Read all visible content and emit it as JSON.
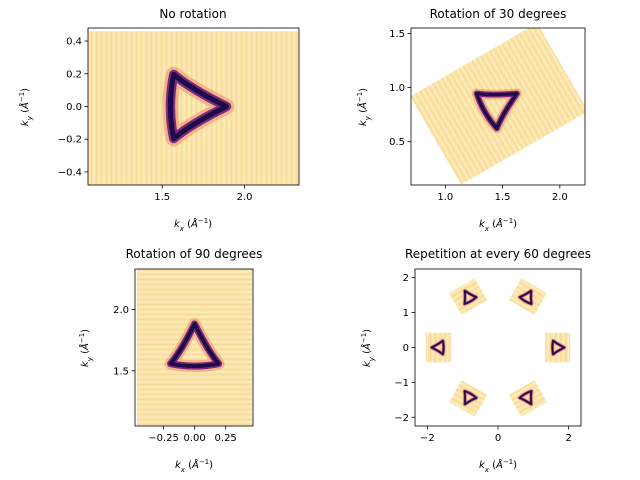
{
  "chart_data": [
    {
      "type": "heatmap",
      "title": "No rotation",
      "xlabel": "k_x (Å^-1)",
      "ylabel": "k_y (Å^-1)",
      "xlim": [
        1.05,
        2.33
      ],
      "ylim": [
        -0.48,
        0.48
      ],
      "xticks": [
        1.5,
        2.0
      ],
      "xtick_labels": [
        "1.5",
        "2.0"
      ],
      "yticks": [
        -0.4,
        -0.2,
        0.0,
        0.2,
        0.4
      ],
      "ytick_labels": [
        "−0.4",
        "−0.2",
        "0.0",
        "0.2",
        "0.4"
      ],
      "map_extent": {
        "x": [
          1.05,
          2.33
        ],
        "y": [
          -0.48,
          0.46
        ]
      },
      "rotation_deg": 0,
      "copies": [
        {
          "cx": 1.7,
          "cy": 0.0
        }
      ],
      "feature": {
        "shape": "triangle",
        "radius": 0.2
      }
    },
    {
      "type": "heatmap",
      "title": "Rotation of 30 degrees",
      "xlabel": "k_x (Å^-1)",
      "ylabel": "k_y (Å^-1)",
      "xlim": [
        0.7,
        2.22
      ],
      "ylim": [
        0.1,
        1.55
      ],
      "xticks": [
        1.0,
        1.5,
        2.0
      ],
      "xtick_labels": [
        "1.0",
        "1.5",
        "2.0"
      ],
      "yticks": [
        0.5,
        1.0,
        1.5
      ],
      "ytick_labels": [
        "0.5",
        "1.0",
        "1.5"
      ],
      "map_size": {
        "w": 1.28,
        "h": 0.94
      },
      "rotation_deg": 30,
      "copies": [
        {
          "cx": 1.47,
          "cy": 0.85
        }
      ],
      "feature": {
        "shape": "triangle",
        "radius": 0.19
      }
    },
    {
      "type": "heatmap",
      "title": "Rotation of 90 degrees",
      "xlabel": "k_x (Å^-1)",
      "ylabel": "k_y (Å^-1)",
      "xlim": [
        -0.48,
        0.47
      ],
      "ylim": [
        1.05,
        2.33
      ],
      "xticks": [
        -0.25,
        0.0,
        0.25
      ],
      "xtick_labels": [
        "−0.25",
        "0.00",
        "0.25"
      ],
      "yticks": [
        1.5,
        2.0
      ],
      "ytick_labels": [
        "1.5",
        "2.0"
      ],
      "map_size": {
        "w": 1.28,
        "h": 0.94
      },
      "rotation_deg": 90,
      "copies": [
        {
          "cx": 0.0,
          "cy": 1.69
        }
      ],
      "feature": {
        "shape": "triangle",
        "radius": 0.2
      }
    },
    {
      "type": "heatmap",
      "title": "Repetition at every 60 degrees",
      "xlabel": "k_x (Å^-1)",
      "ylabel": "k_y (Å^-1)",
      "xlim": [
        -2.35,
        2.35
      ],
      "ylim": [
        -2.25,
        2.25
      ],
      "xticks": [
        -2,
        0,
        2
      ],
      "xtick_labels": [
        "−2",
        "0",
        "2"
      ],
      "yticks": [
        -2,
        -1,
        0,
        1,
        2
      ],
      "ytick_labels": [
        "−2",
        "−1",
        "0",
        "1",
        "2"
      ],
      "map_size": {
        "w": 1.28,
        "h": 0.94
      },
      "rotation_deg": 0,
      "copies": [
        {
          "cx": 1.69,
          "cy": 0.0,
          "angle": 0
        },
        {
          "cx": 0.845,
          "cy": 1.46,
          "angle": 60
        },
        {
          "cx": -0.845,
          "cy": 1.46,
          "angle": 120
        },
        {
          "cx": -1.69,
          "cy": 0.0,
          "angle": 180
        },
        {
          "cx": -0.845,
          "cy": -1.46,
          "angle": 240
        },
        {
          "cx": 0.845,
          "cy": -1.46,
          "angle": 300
        }
      ],
      "feature": {
        "shape": "triangle",
        "radius": 0.2
      }
    }
  ],
  "colors": {
    "background_map": "#fbe3a6",
    "map_light": "#fdf0c8",
    "ring_dark": "#1e0a45",
    "ring_mid": "#7a2a80",
    "ring_glow": "#f08a6a"
  }
}
